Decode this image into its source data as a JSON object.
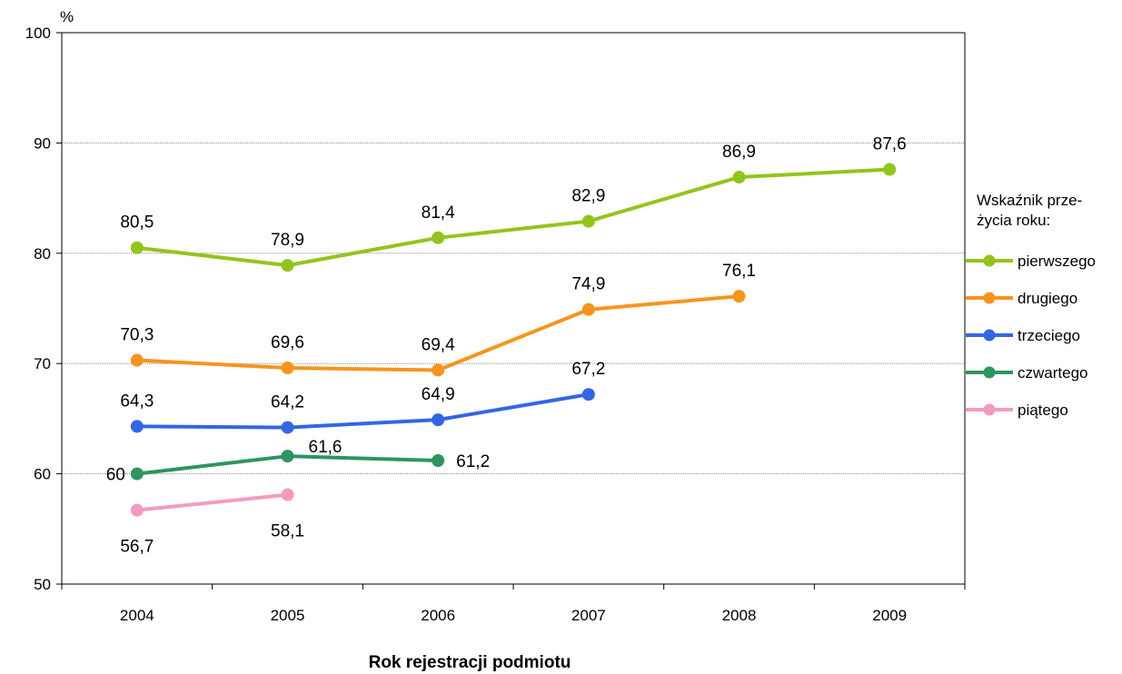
{
  "chart_data": {
    "type": "line",
    "ylabel_unit": "%",
    "xlabel": "Rok rejestracji podmiotu",
    "categories": [
      "2004",
      "2005",
      "2006",
      "2007",
      "2008",
      "2009"
    ],
    "ylim": [
      50,
      100
    ],
    "yticks": [
      "50",
      "60",
      "70",
      "80",
      "90",
      "100"
    ],
    "grid": "horizontal",
    "legend_position": "right",
    "legend_title_lines": [
      "Wskaźnik prze-",
      "życia roku:"
    ],
    "series": [
      {
        "name": "pierwszego",
        "color": "#92c51b",
        "values": [
          80.5,
          78.9,
          81.4,
          82.9,
          86.9,
          87.6
        ],
        "labels": [
          "80,5",
          "78,9",
          "81,4",
          "82,9",
          "86,9",
          "87,6"
        ]
      },
      {
        "name": "drugiego",
        "color": "#f7941d",
        "values": [
          70.3,
          69.6,
          69.4,
          74.9,
          76.1,
          null
        ],
        "labels": [
          "70,3",
          "69,6",
          "69,4",
          "74,9",
          "76,1",
          null
        ]
      },
      {
        "name": "trzeciego",
        "color": "#3366e6",
        "values": [
          64.3,
          64.2,
          64.9,
          67.2,
          null,
          null
        ],
        "labels": [
          "64,3",
          "64,2",
          "64,9",
          "67,2",
          null,
          null
        ]
      },
      {
        "name": "czwartego",
        "color": "#2e9460",
        "values": [
          60,
          61.6,
          61.2,
          null,
          null,
          null
        ],
        "labels": [
          "60",
          "61,6",
          "61,2",
          null,
          null,
          null
        ]
      },
      {
        "name": "piątego",
        "color": "#f49ac1",
        "values": [
          56.7,
          58.1,
          null,
          null,
          null,
          null
        ],
        "labels": [
          "56,7",
          "58,1",
          null,
          null,
          null,
          null
        ]
      }
    ]
  }
}
